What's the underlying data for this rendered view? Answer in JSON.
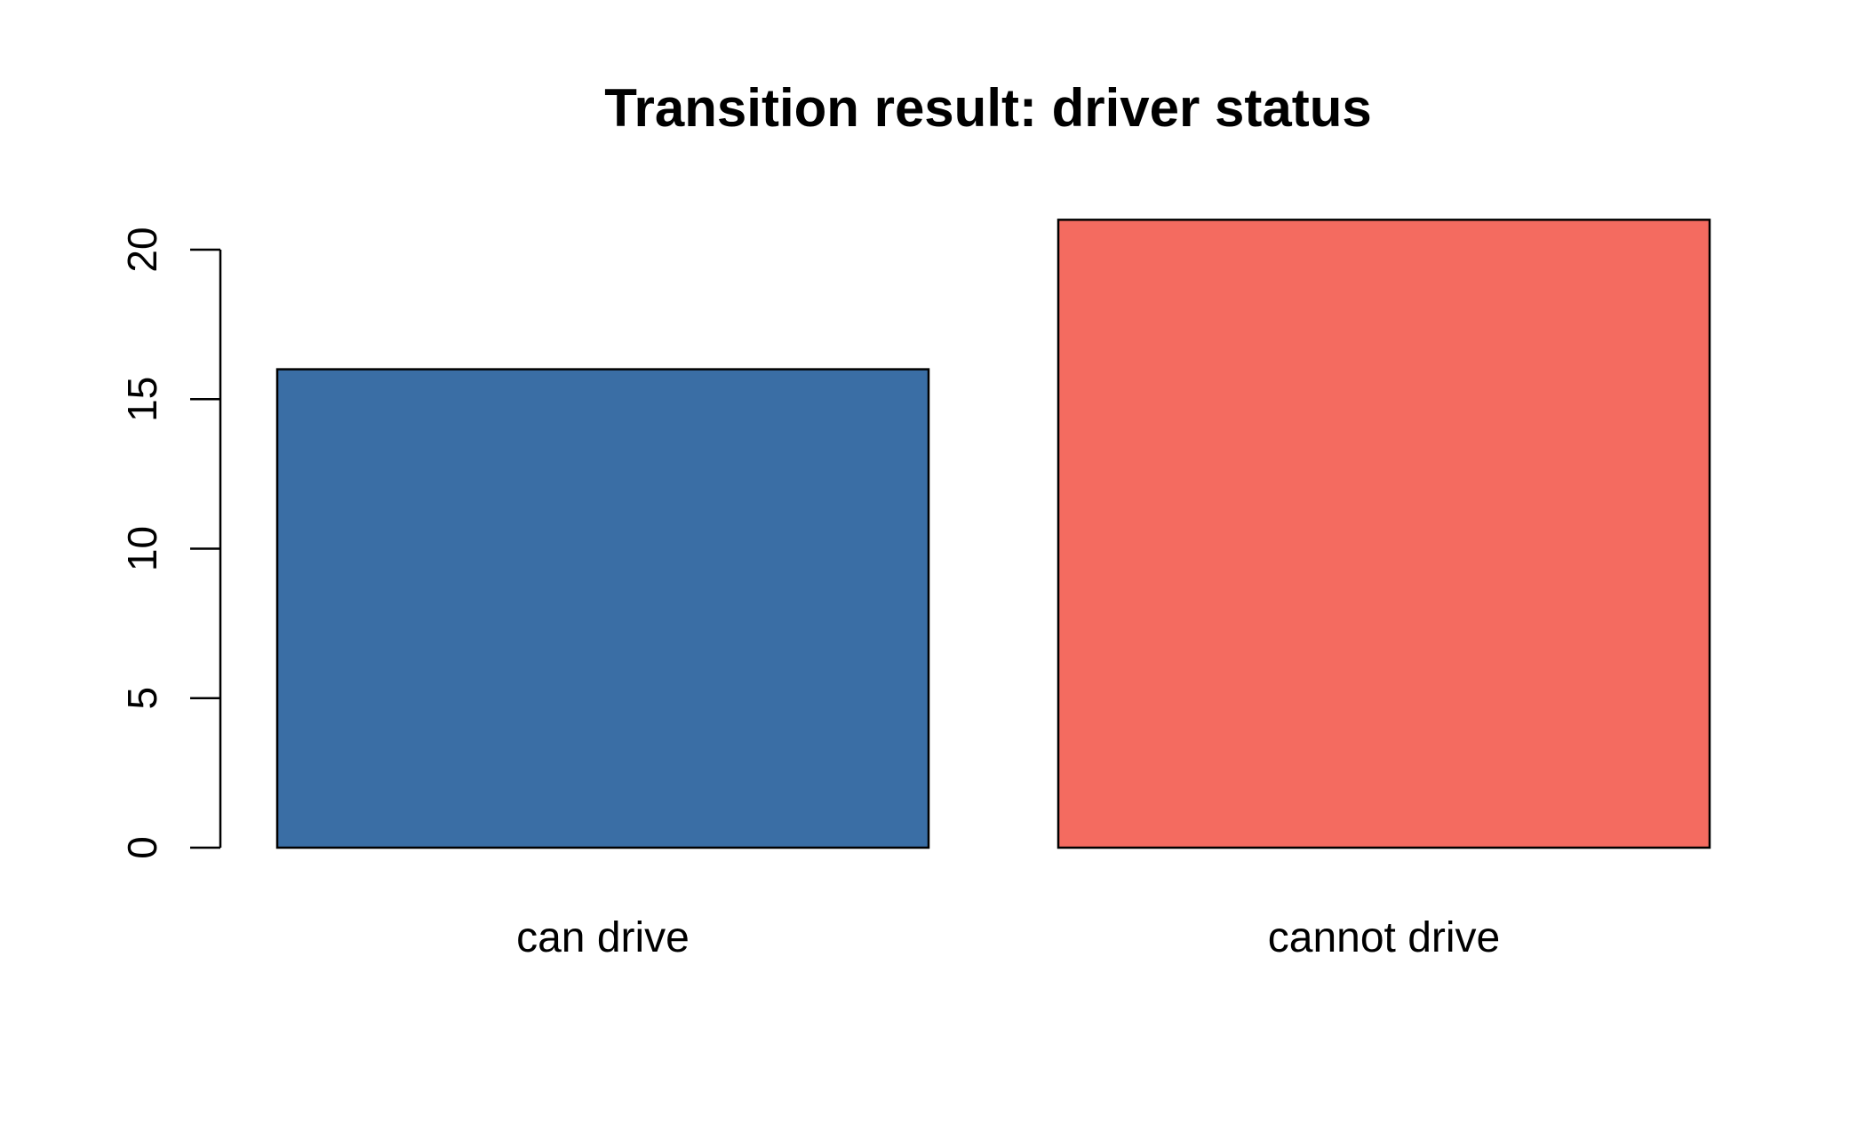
{
  "chart_data": {
    "type": "bar",
    "title": "Transition result: driver status",
    "xlabel": "",
    "ylabel": "",
    "categories": [
      "can drive",
      "cannot drive"
    ],
    "values": [
      16,
      21
    ],
    "colors": [
      "#3A6EA5",
      "#F46B60"
    ],
    "border_color": "#000000",
    "y_ticks": [
      0,
      5,
      10,
      15,
      20
    ],
    "ylim": [
      0,
      21
    ],
    "grid": false,
    "legend": "none"
  }
}
